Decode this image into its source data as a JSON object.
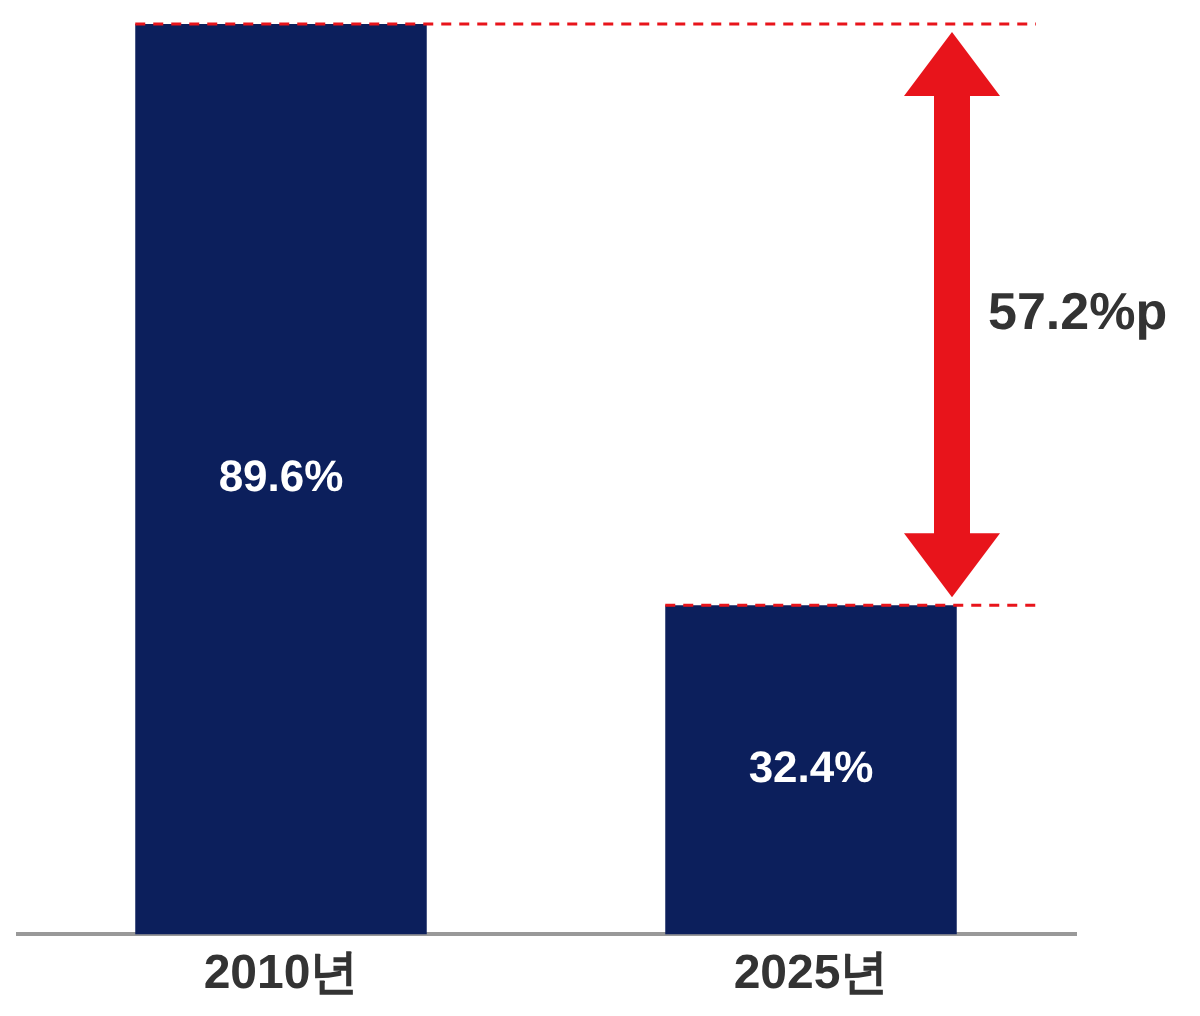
{
  "chart_data": {
    "type": "bar",
    "categories": [
      "2010년",
      "2025년"
    ],
    "values": [
      89.6,
      32.4
    ],
    "value_labels": [
      "89.6%",
      "32.4%"
    ],
    "color": "#0c1f5c",
    "grid": false,
    "legend": false,
    "tick_labels": "x",
    "ref_lines": [
      {
        "axis": "y",
        "value": 89.6,
        "color": "#e8141b",
        "line_style": "dashed"
      },
      {
        "axis": "y",
        "value": 32.4,
        "color": "#e8141b",
        "line_style": "dashed"
      }
    ],
    "annotations": [
      "57.2%p"
    ]
  }
}
